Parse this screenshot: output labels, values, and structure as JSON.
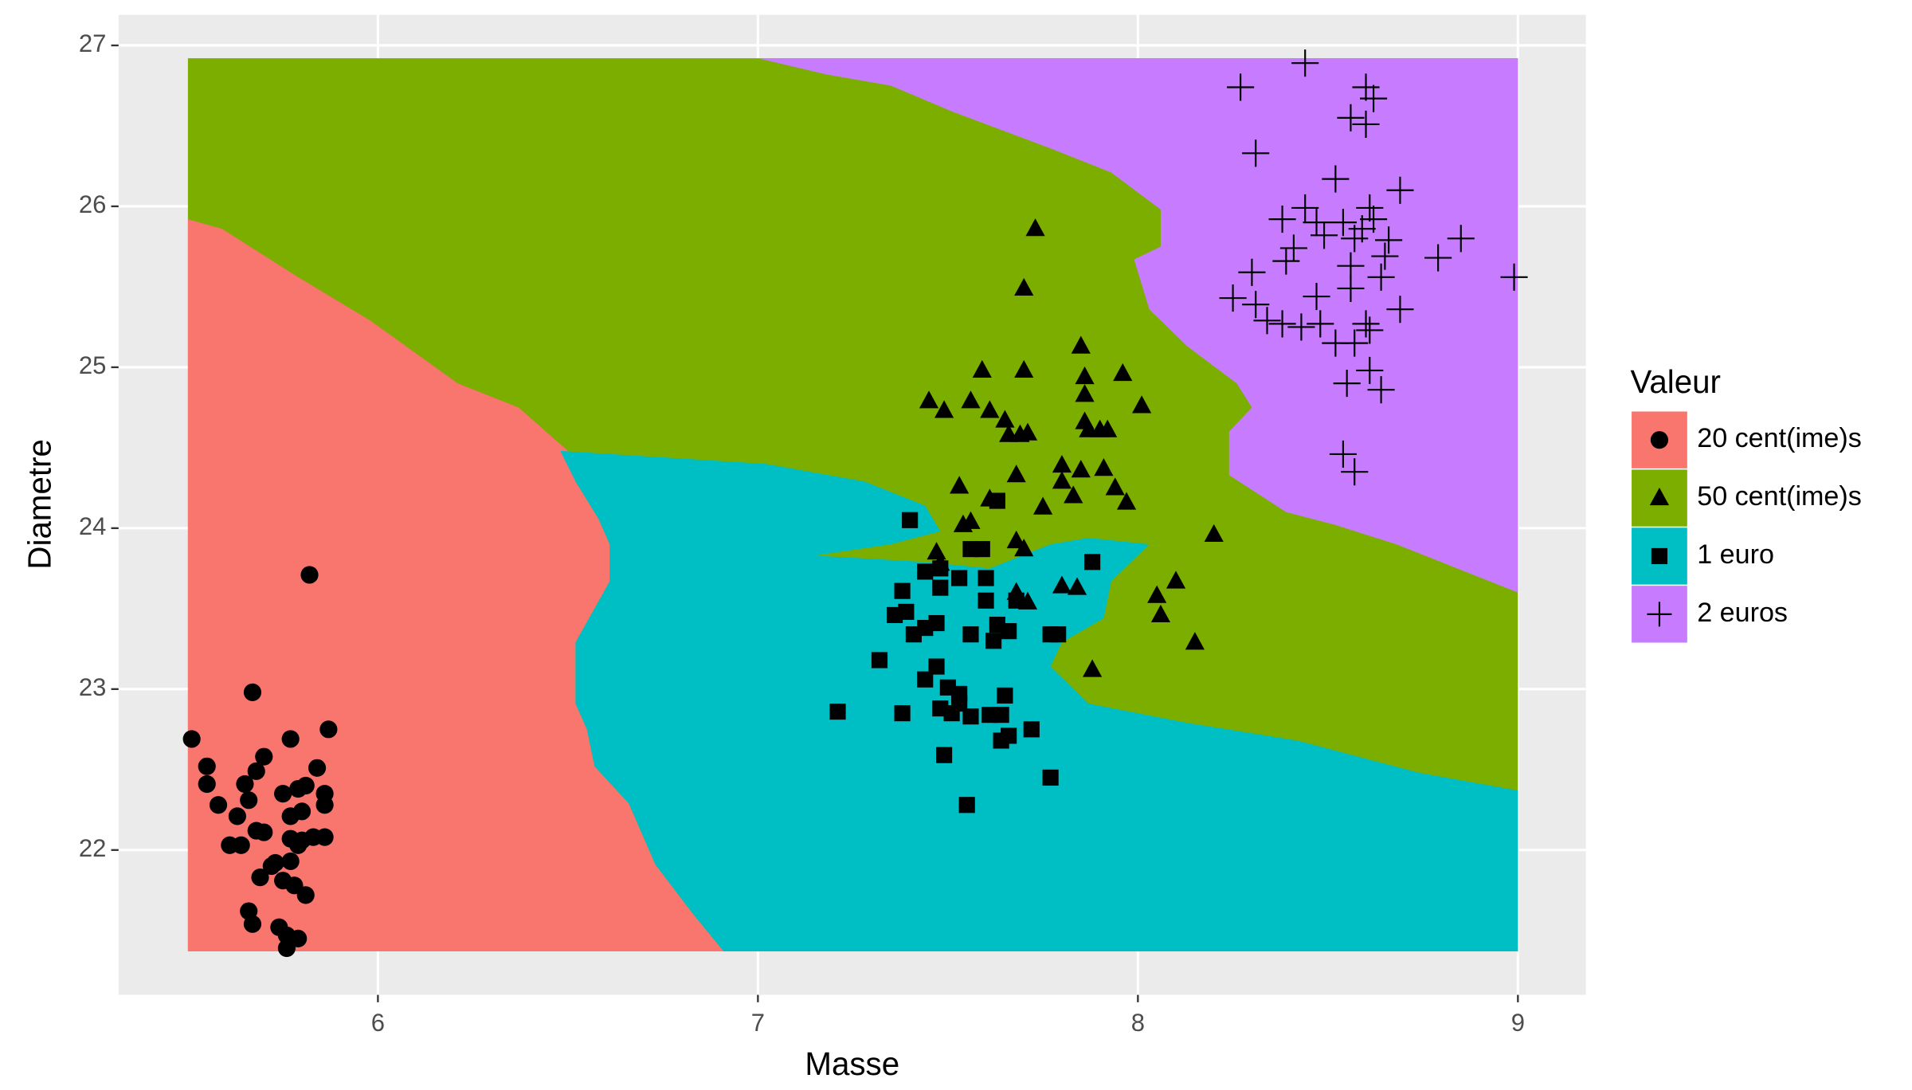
{
  "chart_data": {
    "type": "scatter",
    "x_label": "Masse",
    "y_label": "Diametre",
    "legend_title": "Valeur",
    "legend_position": "right",
    "grid": true,
    "xlim": [
      5.3175,
      9.179
    ],
    "ylim": [
      21.1,
      27.19
    ],
    "xticks": [
      6,
      7,
      8,
      9
    ],
    "yticks": [
      22,
      23,
      24,
      25,
      26,
      27
    ],
    "series": [
      {
        "name": "50 cent(ime)s",
        "color": "#7CAE00",
        "shape": "triangle",
        "region": {
          "x": [
            5.5,
            9.0,
            9.0,
            5.5
          ],
          "y": [
            26.92,
            26.92,
            21.37,
            21.37
          ]
        },
        "x": [
          7.73,
          7.7,
          7.7,
          7.59,
          7.85,
          7.86,
          7.96,
          7.45,
          7.49,
          7.56,
          7.61,
          7.65,
          7.86,
          8.01,
          7.66,
          7.69,
          7.71,
          7.86,
          7.87,
          7.92,
          7.9,
          7.8,
          7.85,
          7.91,
          7.68,
          7.53,
          7.8,
          7.83,
          7.94,
          7.97,
          7.75,
          7.61,
          7.54,
          7.56,
          7.68,
          7.7,
          7.47,
          7.48,
          8.2,
          8.1,
          7.8,
          7.84,
          8.05,
          7.68,
          7.71,
          8.06,
          8.15,
          7.88
        ],
        "y": [
          25.86,
          25.49,
          24.98,
          24.98,
          25.13,
          24.94,
          24.96,
          24.79,
          24.73,
          24.79,
          24.73,
          24.67,
          24.83,
          24.76,
          24.58,
          24.58,
          24.59,
          24.66,
          24.61,
          24.61,
          24.61,
          24.39,
          24.36,
          24.37,
          24.33,
          24.26,
          24.29,
          24.2,
          24.25,
          24.16,
          24.13,
          24.18,
          24.02,
          24.04,
          23.92,
          23.87,
          23.85,
          23.78,
          23.96,
          23.67,
          23.64,
          23.63,
          23.58,
          23.6,
          23.54,
          23.46,
          23.29,
          23.12
        ]
      },
      {
        "name": "20 cent(ime)s",
        "color": "#F8766D",
        "shape": "circle",
        "region": {
          "x": [
            5.5,
            5.59,
            5.79,
            5.98,
            6.21,
            6.37,
            6.5,
            6.52,
            6.58,
            6.61,
            6.61,
            6.52,
            6.52,
            6.55,
            6.57,
            6.66,
            6.73,
            6.83,
            6.91,
            5.5
          ],
          "y": [
            25.92,
            25.86,
            25.56,
            25.29,
            24.9,
            24.75,
            24.48,
            24.29,
            24.06,
            23.9,
            23.67,
            23.29,
            22.91,
            22.75,
            22.52,
            22.29,
            21.91,
            21.6,
            21.37,
            21.37
          ]
        },
        "x": [
          5.51,
          5.55,
          5.55,
          5.58,
          5.61,
          5.63,
          5.64,
          5.65,
          5.66,
          5.67,
          5.66,
          5.67,
          5.68,
          5.68,
          5.69,
          5.7,
          5.7,
          5.72,
          5.73,
          5.74,
          5.75,
          5.75,
          5.76,
          5.76,
          5.77,
          5.77,
          5.77,
          5.77,
          5.78,
          5.79,
          5.79,
          5.79,
          5.8,
          5.8,
          5.81,
          5.81,
          5.82,
          5.83,
          5.84,
          5.86,
          5.86,
          5.86,
          5.87
        ],
        "y": [
          22.69,
          22.52,
          22.41,
          22.28,
          22.03,
          22.21,
          22.03,
          22.41,
          22.31,
          22.98,
          21.62,
          21.54,
          22.49,
          22.12,
          21.83,
          22.11,
          22.58,
          21.9,
          21.92,
          21.52,
          22.35,
          21.81,
          21.39,
          21.47,
          22.07,
          22.69,
          22.21,
          21.93,
          21.78,
          22.38,
          22.03,
          21.45,
          22.24,
          22.06,
          21.72,
          22.4,
          23.71,
          22.08,
          22.51,
          22.28,
          22.35,
          22.08,
          22.75
        ]
      },
      {
        "name": "1 euro",
        "color": "#00BFC4",
        "shape": "square",
        "region": {
          "x": [
            6.48,
            7.02,
            7.28,
            7.44,
            7.48,
            7.35,
            7.15,
            7.44,
            7.61,
            7.77,
            7.87,
            8.03,
            7.93,
            7.91,
            7.8,
            7.77,
            7.87,
            8.13,
            8.42,
            8.74,
            9.0,
            9.0,
            6.91,
            6.83,
            6.73,
            6.66,
            6.57,
            6.55,
            6.52,
            6.52,
            6.61,
            6.61,
            6.58,
            6.52
          ],
          "y": [
            24.48,
            24.4,
            24.29,
            24.14,
            23.98,
            23.9,
            23.83,
            23.79,
            23.75,
            23.9,
            23.94,
            23.9,
            23.67,
            23.44,
            23.29,
            23.14,
            22.91,
            22.79,
            22.68,
            22.48,
            22.37,
            21.37,
            21.37,
            21.6,
            21.91,
            22.29,
            22.52,
            22.75,
            22.91,
            23.29,
            23.67,
            23.9,
            24.06,
            24.29
          ]
        },
        "x": [
          7.4,
          7.63,
          7.56,
          7.59,
          7.88,
          7.44,
          7.48,
          7.6,
          7.53,
          7.38,
          7.48,
          7.6,
          7.68,
          7.39,
          7.36,
          7.47,
          7.44,
          7.41,
          7.56,
          7.63,
          7.66,
          7.62,
          7.77,
          7.79,
          7.32,
          7.47,
          7.44,
          7.5,
          7.53,
          7.65,
          7.53,
          7.48,
          7.51,
          7.21,
          7.38,
          7.61,
          7.64,
          7.56,
          7.72,
          7.66,
          7.64,
          7.49,
          7.77,
          7.55
        ],
        "y": [
          24.05,
          24.17,
          23.87,
          23.87,
          23.79,
          23.73,
          23.75,
          23.69,
          23.69,
          23.61,
          23.63,
          23.55,
          23.55,
          23.48,
          23.46,
          23.41,
          23.38,
          23.34,
          23.34,
          23.4,
          23.36,
          23.3,
          23.34,
          23.34,
          23.18,
          23.14,
          23.06,
          23.01,
          22.97,
          22.96,
          22.91,
          22.88,
          22.85,
          22.86,
          22.85,
          22.84,
          22.84,
          22.83,
          22.75,
          22.71,
          22.68,
          22.59,
          22.45,
          22.28
        ]
      },
      {
        "name": "2 euros",
        "color": "#C77CFF",
        "shape": "cross",
        "region": {
          "x": [
            7.0,
            9.0,
            9.0,
            8.84,
            8.68,
            8.52,
            8.39,
            8.24,
            8.24,
            8.3,
            8.26,
            8.13,
            8.03,
            7.99,
            8.06,
            8.06,
            7.93,
            7.77,
            7.51,
            7.35,
            7.18
          ],
          "y": [
            26.92,
            26.92,
            23.6,
            23.75,
            23.9,
            24.02,
            24.1,
            24.33,
            24.6,
            24.75,
            24.9,
            25.13,
            25.36,
            25.67,
            25.75,
            25.98,
            26.21,
            26.36,
            26.59,
            26.75,
            26.82
          ]
        },
        "x": [
          8.44,
          8.27,
          8.6,
          8.62,
          8.56,
          8.6,
          8.31,
          8.52,
          8.69,
          8.44,
          8.61,
          8.38,
          8.62,
          8.47,
          8.54,
          8.59,
          8.49,
          8.57,
          8.85,
          8.66,
          8.41,
          8.65,
          8.79,
          8.39,
          8.56,
          8.3,
          8.99,
          8.64,
          8.56,
          8.47,
          8.25,
          8.69,
          8.31,
          8.34,
          8.38,
          8.48,
          8.43,
          8.6,
          8.61,
          8.52,
          8.57,
          8.61,
          8.55,
          8.64,
          8.54,
          8.57
        ],
        "y": [
          26.89,
          26.74,
          26.74,
          26.67,
          26.55,
          26.51,
          26.33,
          26.17,
          26.1,
          25.99,
          25.99,
          25.92,
          25.92,
          25.9,
          25.9,
          25.86,
          25.82,
          25.8,
          25.8,
          25.79,
          25.74,
          25.69,
          25.68,
          25.66,
          25.63,
          25.59,
          25.56,
          25.56,
          25.49,
          25.44,
          25.43,
          25.36,
          25.39,
          25.29,
          25.27,
          25.27,
          25.25,
          25.27,
          25.23,
          25.15,
          25.15,
          24.98,
          24.9,
          24.86,
          24.46,
          24.35
        ]
      }
    ],
    "legend_order": [
      1,
      0,
      2,
      3
    ]
  }
}
